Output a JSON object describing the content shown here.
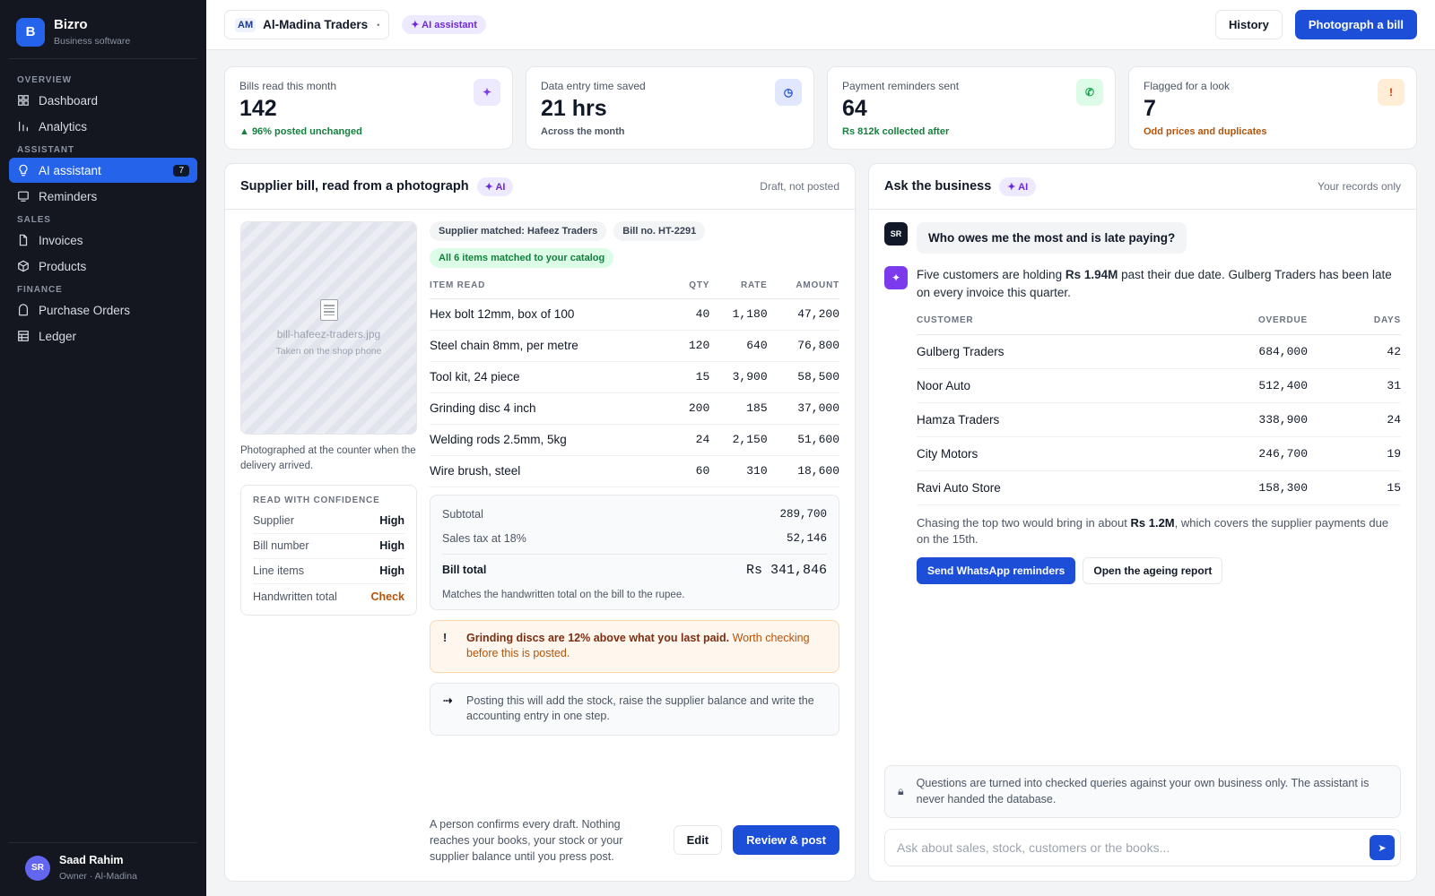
{
  "brand": {
    "initial": "B",
    "name": "Bizro",
    "subtitle": "Business software"
  },
  "nav": {
    "sections": [
      {
        "title": "OVERVIEW",
        "items": [
          {
            "label": "Dashboard",
            "icon": "grid-icon"
          },
          {
            "label": "Analytics",
            "icon": "bar-chart-icon"
          }
        ]
      },
      {
        "title": "ASSISTANT",
        "items": [
          {
            "label": "AI assistant",
            "icon": "lightbulb-icon",
            "badge": "7",
            "active": true
          },
          {
            "label": "Reminders",
            "icon": "message-icon"
          }
        ]
      },
      {
        "title": "SALES",
        "items": [
          {
            "label": "Invoices",
            "icon": "document-icon"
          },
          {
            "label": "Products",
            "icon": "box-icon"
          }
        ]
      },
      {
        "title": "FINANCE",
        "items": [
          {
            "label": "Purchase Orders",
            "icon": "bag-icon"
          },
          {
            "label": "Ledger",
            "icon": "table-icon"
          }
        ]
      }
    ]
  },
  "user": {
    "initials": "SR",
    "name": "Saad Rahim",
    "role": "Owner · Al-Madina"
  },
  "topbar": {
    "business_abbr": "AM",
    "business_name": "Al-Madina Traders",
    "ai_pill": "✦ AI assistant",
    "history_label": "History",
    "photograph_label": "Photograph a bill"
  },
  "kpis": [
    {
      "label": "Bills read this month",
      "value": "142",
      "note": "▲ 96% posted unchanged",
      "note_color": "#15803d",
      "icon": "sparkle-icon",
      "glyph": "✦",
      "icon_bg": "#ede9fe",
      "icon_color": "#7c3aed"
    },
    {
      "label": "Data entry time saved",
      "value": "21 hrs",
      "note": "Across the month",
      "note_color": "#4b5563",
      "icon": "clock-icon",
      "glyph": "◷",
      "icon_bg": "#e0e7ff",
      "icon_color": "#1d4ed8"
    },
    {
      "label": "Payment reminders sent",
      "value": "64",
      "note": "Rs 812k collected after",
      "note_color": "#15803d",
      "icon": "whatsapp-icon",
      "glyph": "✆",
      "icon_bg": "#dcfce7",
      "icon_color": "#16a34a"
    },
    {
      "label": "Flagged for a look",
      "value": "7",
      "note": "Odd prices and duplicates",
      "note_color": "#b45309",
      "icon": "alert-icon",
      "glyph": "!",
      "icon_bg": "#ffedd5",
      "icon_color": "#c2410c"
    }
  ],
  "bill": {
    "title": "Supplier bill, read from a photograph",
    "ai_tag": "✦ AI",
    "status": "Draft, not posted",
    "photo_filename": "bill-hafeez-traders.jpg",
    "photo_sub": "Taken on the shop phone",
    "photo_caption": "Photographed at the counter when the delivery arrived.",
    "confidence": {
      "title": "READ WITH CONFIDENCE",
      "rows": [
        {
          "label": "Supplier",
          "value": "High",
          "level": "high"
        },
        {
          "label": "Bill number",
          "value": "High",
          "level": "high"
        },
        {
          "label": "Line items",
          "value": "High",
          "level": "high"
        },
        {
          "label": "Handwritten total",
          "value": "Check",
          "level": "check"
        }
      ]
    },
    "chips": {
      "supplier": "Supplier matched: Hafeez Traders",
      "bill_no": "Bill no. HT-2291",
      "matched": "All 6 items matched to your catalog"
    },
    "columns": {
      "item": "ITEM READ",
      "qty": "QTY",
      "rate": "RATE",
      "amount": "AMOUNT"
    },
    "items": [
      {
        "name": "Hex bolt 12mm, box of 100",
        "qty": "40",
        "rate": "1,180",
        "amount": "47,200"
      },
      {
        "name": "Steel chain 8mm, per metre",
        "qty": "120",
        "rate": "640",
        "amount": "76,800"
      },
      {
        "name": "Tool kit, 24 piece",
        "qty": "15",
        "rate": "3,900",
        "amount": "58,500"
      },
      {
        "name": "Grinding disc 4 inch",
        "qty": "200",
        "rate": "185",
        "amount": "37,000"
      },
      {
        "name": "Welding rods 2.5mm, 5kg",
        "qty": "24",
        "rate": "2,150",
        "amount": "51,600"
      },
      {
        "name": "Wire brush, steel",
        "qty": "60",
        "rate": "310",
        "amount": "18,600"
      }
    ],
    "totals": {
      "subtotal_label": "Subtotal",
      "subtotal": "289,700",
      "tax_label": "Sales tax at 18%",
      "tax": "52,146",
      "total_label": "Bill total",
      "total": "Rs 341,846",
      "note": "Matches the handwritten total on the bill to the rupee."
    },
    "warning": {
      "glyph": "!",
      "strong": "Grinding discs are 12% above what you last paid.",
      "rest": " Worth checking before this is posted."
    },
    "info": {
      "glyph": "⇢",
      "text": "Posting this will add the stock, raise the supplier balance and write the accounting entry in one step."
    },
    "footer_text": "A person confirms every draft. Nothing reaches your books, your stock or your supplier balance until you press post.",
    "edit_label": "Edit",
    "post_label": "Review & post"
  },
  "ask": {
    "title": "Ask the business",
    "ai_tag": "✦ AI",
    "scope": "Your records only",
    "user_initials": "SR",
    "question": "Who owes me the most and is late paying?",
    "answer_pre": "Five customers are holding ",
    "answer_amount": "Rs 1.94M",
    "answer_post": " past their due date. Gulberg Traders has been late on every invoice this quarter.",
    "columns": {
      "customer": "CUSTOMER",
      "overdue": "OVERDUE",
      "days": "DAYS"
    },
    "customers": [
      {
        "name": "Gulberg Traders",
        "overdue": "684,000",
        "days": "42"
      },
      {
        "name": "Noor Auto",
        "overdue": "512,400",
        "days": "31"
      },
      {
        "name": "Hamza Traders",
        "overdue": "338,900",
        "days": "24"
      },
      {
        "name": "City Motors",
        "overdue": "246,700",
        "days": "19"
      },
      {
        "name": "Ravi Auto Store",
        "overdue": "158,300",
        "days": "15"
      }
    ],
    "followup_pre": "Chasing the top two would bring in about ",
    "followup_amount": "Rs 1.2M",
    "followup_post": ", which covers the supplier payments due on the 15th.",
    "whatsapp_label": "Send WhatsApp reminders",
    "ageing_label": "Open the ageing report",
    "privacy_note": "Questions are turned into checked queries against your own business only. The assistant is never handed the database.",
    "input_placeholder": "Ask about sales, stock, customers or the books..."
  }
}
